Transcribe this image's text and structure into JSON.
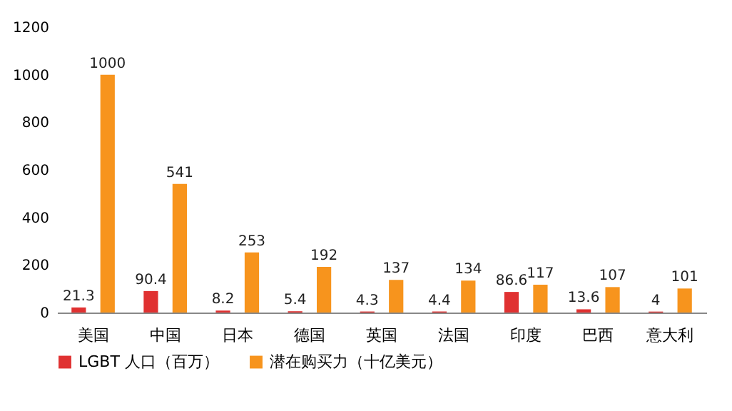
{
  "chart_data": {
    "type": "bar",
    "categories": [
      "美国",
      "中国",
      "日本",
      "德国",
      "英国",
      "法国",
      "印度",
      "巴西",
      "意大利"
    ],
    "series": [
      {
        "name": "LGBT 人口（百万）",
        "color": "#e03131",
        "values": [
          21.3,
          90.4,
          8.2,
          5.4,
          4.3,
          4.4,
          86.6,
          13.6,
          4
        ]
      },
      {
        "name": "潜在购买力（十亿美元）",
        "color": "#f7941d",
        "values": [
          1000,
          541,
          253,
          192,
          137,
          134,
          117,
          107,
          101
        ]
      }
    ],
    "ylim": [
      0,
      1200
    ],
    "yticks": [
      0,
      200,
      400,
      600,
      800,
      1000,
      1200
    ],
    "grid": false,
    "legend": "bottom",
    "data_labels": true
  }
}
